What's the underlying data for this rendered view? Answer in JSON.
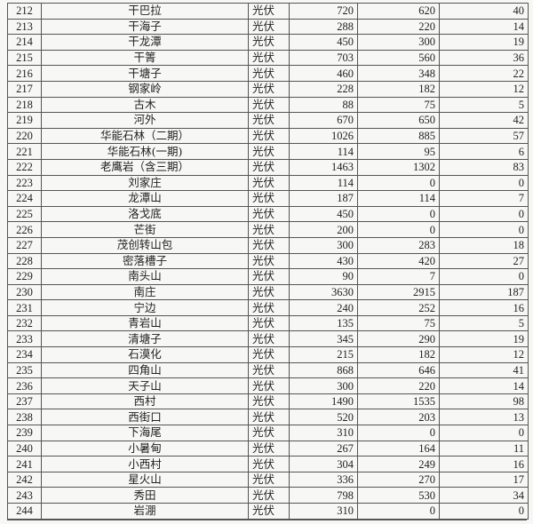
{
  "rows": [
    {
      "no": "212",
      "name": "干巴拉",
      "type": "光伏",
      "a": "720",
      "b": "620",
      "c": "40"
    },
    {
      "no": "213",
      "name": "干海子",
      "type": "光伏",
      "a": "288",
      "b": "220",
      "c": "14"
    },
    {
      "no": "214",
      "name": "干龙潭",
      "type": "光伏",
      "a": "450",
      "b": "300",
      "c": "19"
    },
    {
      "no": "215",
      "name": "干箐",
      "type": "光伏",
      "a": "703",
      "b": "560",
      "c": "36"
    },
    {
      "no": "216",
      "name": "干塘子",
      "type": "光伏",
      "a": "460",
      "b": "348",
      "c": "22"
    },
    {
      "no": "217",
      "name": "钢家岭",
      "type": "光伏",
      "a": "228",
      "b": "182",
      "c": "12"
    },
    {
      "no": "218",
      "name": "古木",
      "type": "光伏",
      "a": "88",
      "b": "75",
      "c": "5"
    },
    {
      "no": "219",
      "name": "河外",
      "type": "光伏",
      "a": "670",
      "b": "650",
      "c": "42"
    },
    {
      "no": "220",
      "name": "华能石林（二期）",
      "type": "光伏",
      "a": "1026",
      "b": "885",
      "c": "57"
    },
    {
      "no": "221",
      "name": "华能石林(一期)",
      "type": "光伏",
      "a": "114",
      "b": "95",
      "c": "6"
    },
    {
      "no": "222",
      "name": "老鹰岩（含三期）",
      "type": "光伏",
      "a": "1463",
      "b": "1302",
      "c": "83"
    },
    {
      "no": "223",
      "name": "刘家庄",
      "type": "光伏",
      "a": "114",
      "b": "0",
      "c": "0"
    },
    {
      "no": "224",
      "name": "龙潭山",
      "type": "光伏",
      "a": "187",
      "b": "114",
      "c": "7"
    },
    {
      "no": "225",
      "name": "洛戈底",
      "type": "光伏",
      "a": "450",
      "b": "0",
      "c": "0"
    },
    {
      "no": "226",
      "name": "芒街",
      "type": "光伏",
      "a": "200",
      "b": "0",
      "c": "0"
    },
    {
      "no": "227",
      "name": "茂创转山包",
      "type": "光伏",
      "a": "300",
      "b": "283",
      "c": "18"
    },
    {
      "no": "228",
      "name": "密落槽子",
      "type": "光伏",
      "a": "430",
      "b": "420",
      "c": "27"
    },
    {
      "no": "229",
      "name": "南头山",
      "type": "光伏",
      "a": "90",
      "b": "7",
      "c": "0"
    },
    {
      "no": "230",
      "name": "南庄",
      "type": "光伏",
      "a": "3630",
      "b": "2915",
      "c": "187"
    },
    {
      "no": "231",
      "name": "宁边",
      "type": "光伏",
      "a": "240",
      "b": "252",
      "c": "16"
    },
    {
      "no": "232",
      "name": "青岩山",
      "type": "光伏",
      "a": "135",
      "b": "75",
      "c": "5"
    },
    {
      "no": "233",
      "name": "清塘子",
      "type": "光伏",
      "a": "345",
      "b": "290",
      "c": "19"
    },
    {
      "no": "234",
      "name": "石漠化",
      "type": "光伏",
      "a": "215",
      "b": "182",
      "c": "12"
    },
    {
      "no": "235",
      "name": "四角山",
      "type": "光伏",
      "a": "868",
      "b": "646",
      "c": "41"
    },
    {
      "no": "236",
      "name": "天子山",
      "type": "光伏",
      "a": "300",
      "b": "220",
      "c": "14"
    },
    {
      "no": "237",
      "name": "西村",
      "type": "光伏",
      "a": "1490",
      "b": "1535",
      "c": "98"
    },
    {
      "no": "238",
      "name": "西街口",
      "type": "光伏",
      "a": "520",
      "b": "203",
      "c": "13"
    },
    {
      "no": "239",
      "name": "下海尾",
      "type": "光伏",
      "a": "310",
      "b": "0",
      "c": "0"
    },
    {
      "no": "240",
      "name": "小暑甸",
      "type": "光伏",
      "a": "267",
      "b": "164",
      "c": "11"
    },
    {
      "no": "241",
      "name": "小西村",
      "type": "光伏",
      "a": "304",
      "b": "249",
      "c": "16"
    },
    {
      "no": "242",
      "name": "星火山",
      "type": "光伏",
      "a": "336",
      "b": "270",
      "c": "17"
    },
    {
      "no": "243",
      "name": "秀田",
      "type": "光伏",
      "a": "798",
      "b": "530",
      "c": "34"
    },
    {
      "no": "244",
      "name": "岩淜",
      "type": "光伏",
      "a": "310",
      "b": "0",
      "c": "0"
    }
  ]
}
